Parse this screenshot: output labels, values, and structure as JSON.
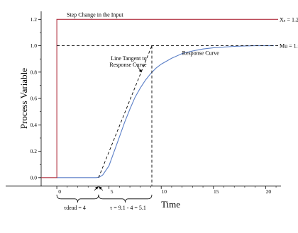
{
  "chart_data": {
    "type": "line",
    "xlabel": "Time",
    "ylabel": "Process Variable",
    "xlim": [
      -1.5,
      21.2
    ],
    "ylim": [
      -0.06,
      1.25
    ],
    "x_ticks": [
      0,
      5,
      10,
      15,
      20
    ],
    "x_tick_labels": [
      "0",
      "5",
      "10",
      "15",
      "20"
    ],
    "y_ticks": [
      0.0,
      0.2,
      0.4,
      0.6,
      0.8,
      1.0,
      1.2
    ],
    "y_tick_labels": [
      "0.0",
      "0.2",
      "0.4",
      "0.6",
      "0.8",
      "1.0",
      "1.2"
    ],
    "grid": false,
    "series": [
      {
        "name": "Response Curve",
        "color": "#5b7fc7",
        "style": "solid",
        "x": [
          0,
          3.8,
          4.1,
          4.4,
          5.0,
          5.5,
          6.0,
          6.5,
          7.0,
          7.5,
          8.0,
          8.5,
          9.0,
          9.5,
          10.0,
          11.0,
          12.0,
          13.0,
          14.0,
          15.0,
          16.0,
          17.0,
          18.0,
          19.0,
          20.0,
          20.8
        ],
        "y": [
          0,
          0,
          0.005,
          0.02,
          0.09,
          0.2,
          0.31,
          0.42,
          0.52,
          0.61,
          0.68,
          0.74,
          0.79,
          0.83,
          0.86,
          0.905,
          0.94,
          0.96,
          0.975,
          0.985,
          0.99,
          0.995,
          0.998,
          1.0,
          1.0,
          1.0
        ]
      },
      {
        "name": "Step Change in the Input",
        "color": "#b03040",
        "style": "solid",
        "x": [
          -1.5,
          0,
          0,
          21.2
        ],
        "y": [
          0,
          0,
          1.2,
          1.2
        ]
      },
      {
        "name": "Line Tangent to Response Curve",
        "color": "#000000",
        "style": "dashed",
        "x": [
          4,
          9.1
        ],
        "y": [
          0,
          1.0
        ]
      },
      {
        "name": "Mu",
        "color": "#000000",
        "style": "dashed",
        "x": [
          0,
          21.2
        ],
        "y": [
          1.0,
          1.0
        ]
      },
      {
        "name": "tangent-drop",
        "color": "#000000",
        "style": "dashed",
        "x": [
          9.1,
          9.1
        ],
        "y": [
          1.0,
          -0.06
        ]
      }
    ],
    "annotations": {
      "step_label": "Step Change in the Input",
      "xs_label": "Xₛ = 1.2",
      "mu_label": "Mu = 1.0",
      "tangent_label_line1": "Line Tangent to",
      "tangent_label_line2": "Response Curve",
      "response_label": "Response Curve",
      "tau_dead_label": "τdead = 4",
      "tau_label": "τ = 9.1 - 4 = 5.1"
    }
  }
}
